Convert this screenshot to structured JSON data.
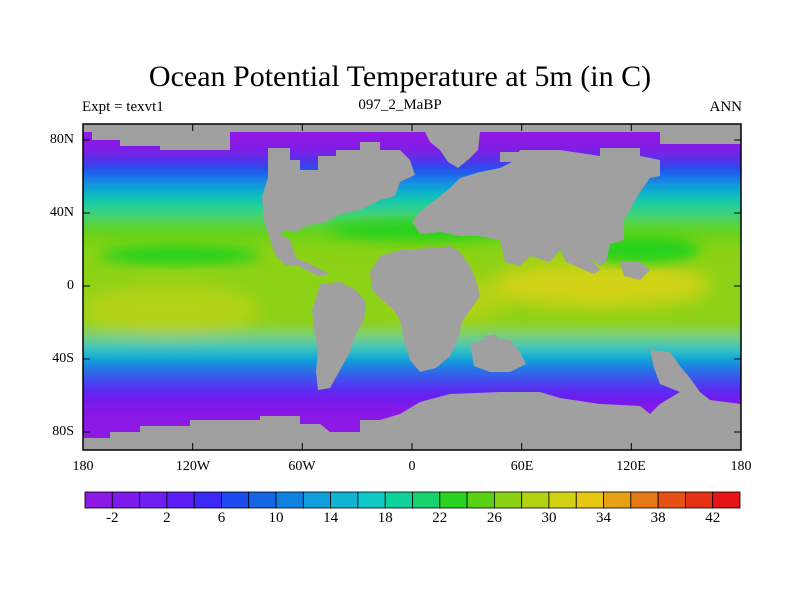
{
  "title": "Ocean Potential Temperature at 5m (in C)",
  "subtitle_left": "Expt = texvt1",
  "subtitle_center": "097_2_MaBP",
  "subtitle_right": "ANN",
  "lat_labels": [
    "80N",
    "40N",
    "0",
    "40S",
    "80S"
  ],
  "lon_labels": [
    "180",
    "120W",
    "60W",
    "0",
    "60E",
    "120E",
    "180"
  ],
  "colorbar": {
    "labels": [
      "-2",
      "2",
      "6",
      "10",
      "14",
      "18",
      "22",
      "26",
      "30",
      "34",
      "38",
      "42"
    ],
    "colors": [
      "#8c19e6",
      "#7d19eb",
      "#6e1ef0",
      "#5a1ef5",
      "#3c28f5",
      "#1e4bf0",
      "#1466e6",
      "#0f82e1",
      "#0fa0dc",
      "#0fb4d2",
      "#0fc8c8",
      "#0fd29b",
      "#14d26e",
      "#28d21e",
      "#5ad214",
      "#8cd214",
      "#b4d214",
      "#d2d214",
      "#e6c814",
      "#e6a014",
      "#e67814",
      "#e65014",
      "#e63214",
      "#e61414"
    ]
  },
  "colors": {
    "land": "#a0a0a0",
    "frame": "#000000"
  }
}
